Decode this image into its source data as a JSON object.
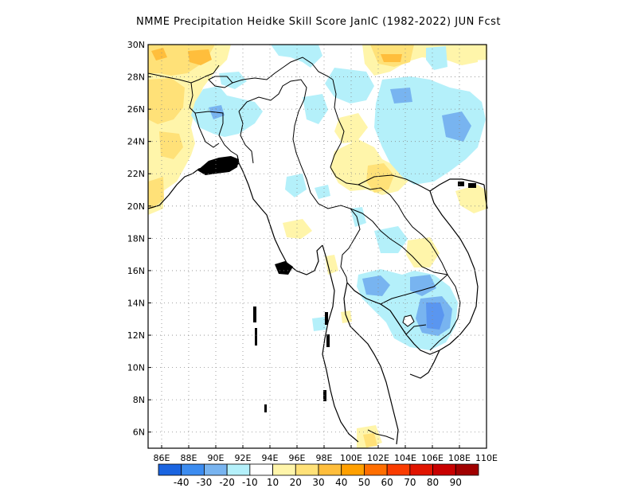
{
  "title": "NMME  Precipitation Heidke Skill Score JanIC (1982-2022) JUN Fcst",
  "map": {
    "lon_range": [
      85,
      110
    ],
    "lat_range": [
      5,
      30
    ],
    "x_ticks": [
      "86E",
      "88E",
      "90E",
      "92E",
      "94E",
      "96E",
      "98E",
      "100E",
      "102E",
      "104E",
      "106E",
      "108E",
      "110E"
    ],
    "y_ticks": [
      "30N",
      "28N",
      "26N",
      "24N",
      "22N",
      "20N",
      "18N",
      "16N",
      "14N",
      "12N",
      "10N",
      "8N",
      "6N"
    ],
    "gridlines": true
  },
  "colorbar": {
    "labels": [
      "-40",
      "-30",
      "-20",
      "-10",
      "10",
      "20",
      "30",
      "40",
      "50",
      "60",
      "70",
      "80",
      "90"
    ],
    "colors": [
      "#1a64e0",
      "#3c8cf0",
      "#78b4f0",
      "#b4f0fa",
      "#ffffff",
      "#fff5aa",
      "#ffe178",
      "#ffbe3c",
      "#ffa000",
      "#ff6e00",
      "#fa3c00",
      "#e11400",
      "#c80000",
      "#a00000"
    ]
  },
  "anomaly_colors": {
    "neg10": "#b4f0fa",
    "neg20": "#78b4f0",
    "neg30": "#5a96f0",
    "pos10": "#fff5aa",
    "pos20": "#ffe178",
    "pos30": "#ffbe3c"
  }
}
